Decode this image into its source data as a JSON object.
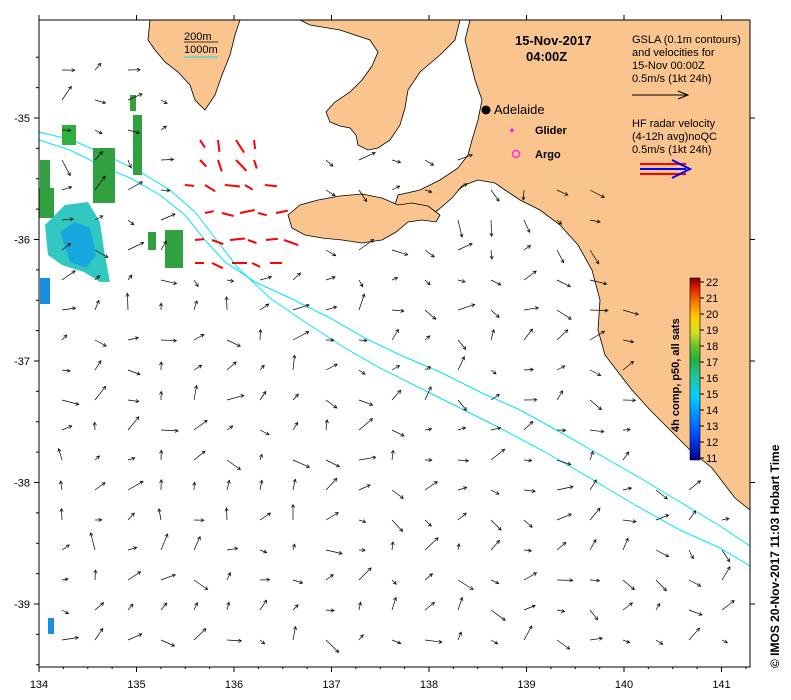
{
  "map": {
    "title_date": "15-Nov-2017",
    "title_time": "04:00Z",
    "x_ticks": [
      "134",
      "135",
      "136",
      "137",
      "138",
      "139",
      "140",
      "141"
    ],
    "y_ticks": [
      "-35",
      "-36",
      "-37",
      "-38",
      "-39"
    ],
    "lon_range": [
      134,
      141.3
    ],
    "lat_range": [
      -39.5,
      -34.35
    ],
    "depth_legend": {
      "label_200": "200m",
      "label_1000": "1000m",
      "line_color": "#00e5ff"
    },
    "city": {
      "name": "Adelaide",
      "lon": 138.6,
      "lat": -34.93
    },
    "markers": [
      {
        "name": "Glider",
        "color": "#cc33ff"
      },
      {
        "name": "Argo",
        "color": "#ff33cc"
      }
    ],
    "gsla_info": [
      "GSLA (0.1m contours)",
      "and velocities for",
      "15-Nov 00:00Z",
      "0.5m/s (1kt 24h)"
    ],
    "hf_info": [
      "HF radar velocity",
      "(4-12h avg)noQC",
      "0.5m/s (1kt 24h)"
    ],
    "colorbar": {
      "label": "4h comp, p50, all sats",
      "ticks": [
        "22",
        "21",
        "20",
        "19",
        "18",
        "17",
        "16",
        "15",
        "14",
        "13",
        "12",
        "11"
      ],
      "min": 11,
      "max": 22
    },
    "credit": "© IMOS 20-Nov-2017 11:03 Hobart Time",
    "land_color": "#fac48e",
    "hf_vector_color": "#ff0000"
  }
}
